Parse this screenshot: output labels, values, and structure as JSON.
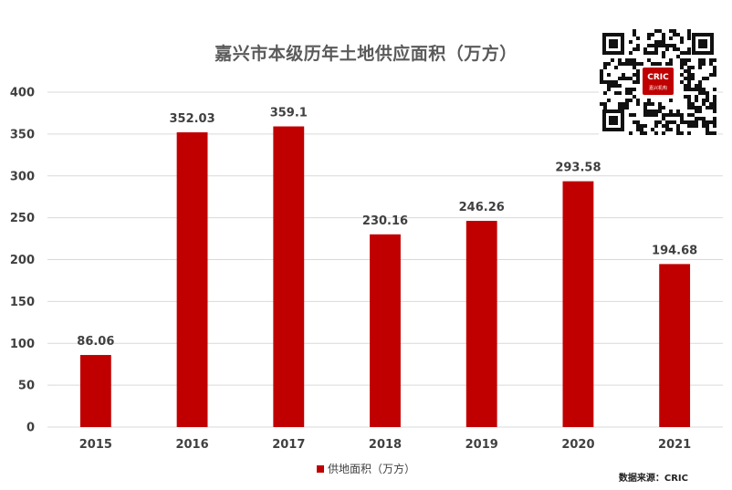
{
  "chart_data": {
    "type": "bar",
    "title": "嘉兴市本级历年土地供应面积（万方）",
    "categories": [
      "2015",
      "2016",
      "2017",
      "2018",
      "2019",
      "2020",
      "2021"
    ],
    "series": [
      {
        "name": "供地面积（万方）",
        "values": [
          86.06,
          352.03,
          359.1,
          230.16,
          246.26,
          293.58,
          194.68
        ]
      }
    ],
    "value_labels": [
      "86.06",
      "352.03",
      "359.1",
      "230.16",
      "246.26",
      "293.58",
      "194.68"
    ],
    "ylim": [
      0,
      400
    ],
    "yticks": [
      "0",
      "50",
      "100",
      "150",
      "200",
      "250",
      "300",
      "350",
      "400"
    ],
    "ytick_values": [
      0,
      50,
      100,
      150,
      200,
      250,
      300,
      350,
      400
    ],
    "xlabel": "",
    "ylabel": "",
    "grid": true,
    "legend_position": "bottom",
    "colors": {
      "bar": "#c00000",
      "grid": "#d9d9d9"
    }
  },
  "source": "数据来源：CRIC",
  "qr": {
    "center_text": "CRIC",
    "center_subtext": "嘉兴机构"
  }
}
